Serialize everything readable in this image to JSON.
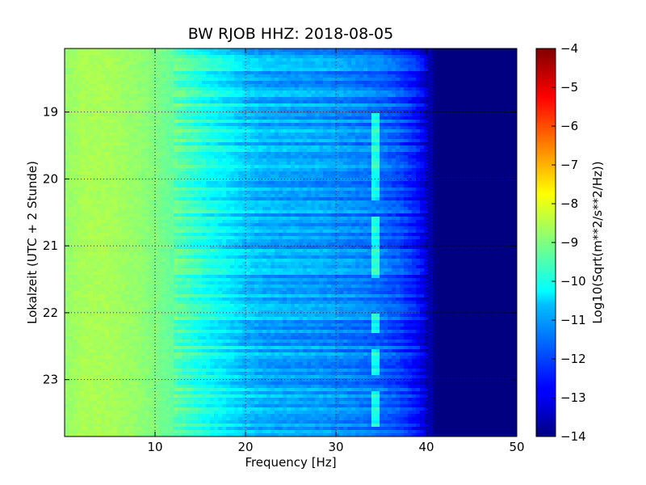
{
  "chart_data": {
    "type": "heatmap",
    "title": "BW RJOB HHZ: 2018-08-05",
    "xlabel": "Frequency [Hz]",
    "ylabel": "Lokalzeit (UTC + 2 Stunde)",
    "xlim": [
      0,
      50
    ],
    "ylim": [
      18.05,
      23.85
    ],
    "y_inverted": true,
    "x_ticks": [
      10,
      20,
      30,
      40,
      50
    ],
    "x_tick_labels": [
      "10",
      "20",
      "30",
      "40",
      "50"
    ],
    "y_ticks": [
      19,
      20,
      21,
      22,
      23
    ],
    "y_tick_labels": [
      "19",
      "20",
      "21",
      "22",
      "23"
    ],
    "grid": true,
    "colormap": "jet",
    "colorbar": {
      "label": "Log10(Sqrt(m**2/s**2/Hz))",
      "range": [
        -14,
        -4
      ],
      "ticks": [
        -4,
        -5,
        -6,
        -7,
        -8,
        -9,
        -10,
        -11,
        -12,
        -13,
        -14
      ],
      "tick_labels": [
        "−4",
        "−5",
        "−6",
        "−7",
        "−8",
        "−9",
        "−10",
        "−11",
        "−12",
        "−13",
        "−14"
      ]
    },
    "spectrum_profile": {
      "frequency_hz": [
        0,
        2,
        5,
        8,
        10,
        12,
        14,
        16,
        18,
        20,
        22,
        25,
        28,
        30,
        33,
        35,
        37,
        39,
        40,
        41,
        45,
        50
      ],
      "log_amplitude": [
        -8.8,
        -8.6,
        -8.6,
        -8.8,
        -9.0,
        -9.3,
        -9.7,
        -10.1,
        -10.4,
        -10.8,
        -11.0,
        -11.1,
        -11.2,
        -11.3,
        -11.5,
        -11.7,
        -12.0,
        -12.6,
        -13.2,
        -14.0,
        -14.0,
        -14.0
      ]
    },
    "line_feature": {
      "description_hz": 34.3,
      "segments_hours": [
        [
          19.0,
          20.3
        ],
        [
          20.55,
          21.5
        ],
        [
          22.0,
          22.3
        ],
        [
          22.55,
          22.95
        ],
        [
          23.15,
          23.7
        ]
      ]
    }
  }
}
